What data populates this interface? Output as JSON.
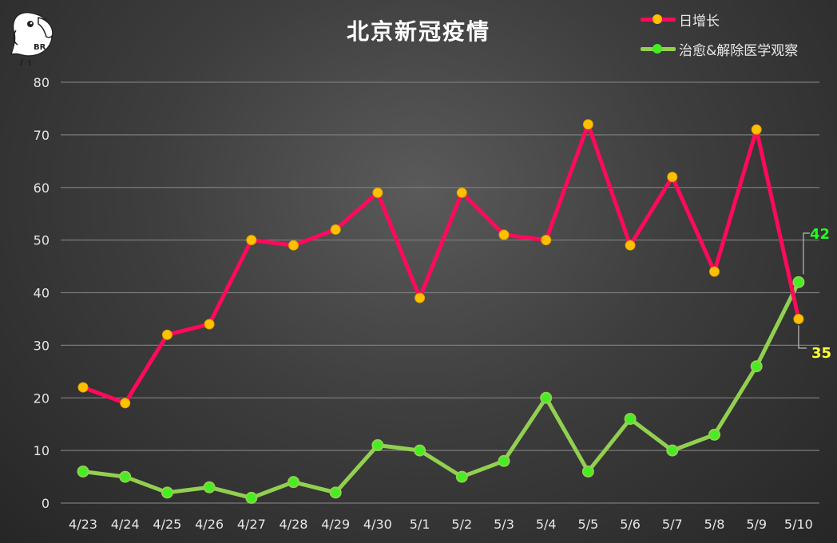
{
  "title": "北京新冠疫情",
  "colors": {
    "daily": "#ff0a5a",
    "daily_marker": "#ffc000",
    "cured": "#92d050",
    "cured_marker": "#44ee22",
    "grid": "#7a7a7a",
    "axis_text": "#e6e6e6"
  },
  "logo": {
    "text": "BR"
  },
  "legend": {
    "items": [
      {
        "label": "日增长"
      },
      {
        "label": "治愈&解除医学观察"
      }
    ]
  },
  "chart_data": {
    "type": "line",
    "title": "北京新冠疫情",
    "categories": [
      "4/23",
      "4/24",
      "4/25",
      "4/26",
      "4/27",
      "4/28",
      "4/29",
      "4/30",
      "5/1",
      "5/2",
      "5/3",
      "5/4",
      "5/5",
      "5/6",
      "5/7",
      "5/8",
      "5/9",
      "5/10"
    ],
    "ylim": [
      0,
      80
    ],
    "yticks": [
      0,
      10,
      20,
      30,
      40,
      50,
      60,
      70,
      80
    ],
    "grid": true,
    "legend_position": "top-right",
    "series": [
      {
        "name": "日增长",
        "values": [
          22,
          19,
          32,
          34,
          50,
          49,
          52,
          59,
          39,
          59,
          51,
          50,
          72,
          49,
          62,
          44,
          71,
          35
        ]
      },
      {
        "name": "治愈&解除医学观察",
        "values": [
          6,
          5,
          2,
          3,
          1,
          4,
          2,
          11,
          10,
          5,
          8,
          20,
          6,
          16,
          10,
          13,
          26,
          42
        ]
      }
    ],
    "annotations": [
      {
        "text": "42",
        "series": "治愈&解除医学观察",
        "category": "5/10"
      },
      {
        "text": "35",
        "series": "日增长",
        "category": "5/10"
      }
    ]
  }
}
